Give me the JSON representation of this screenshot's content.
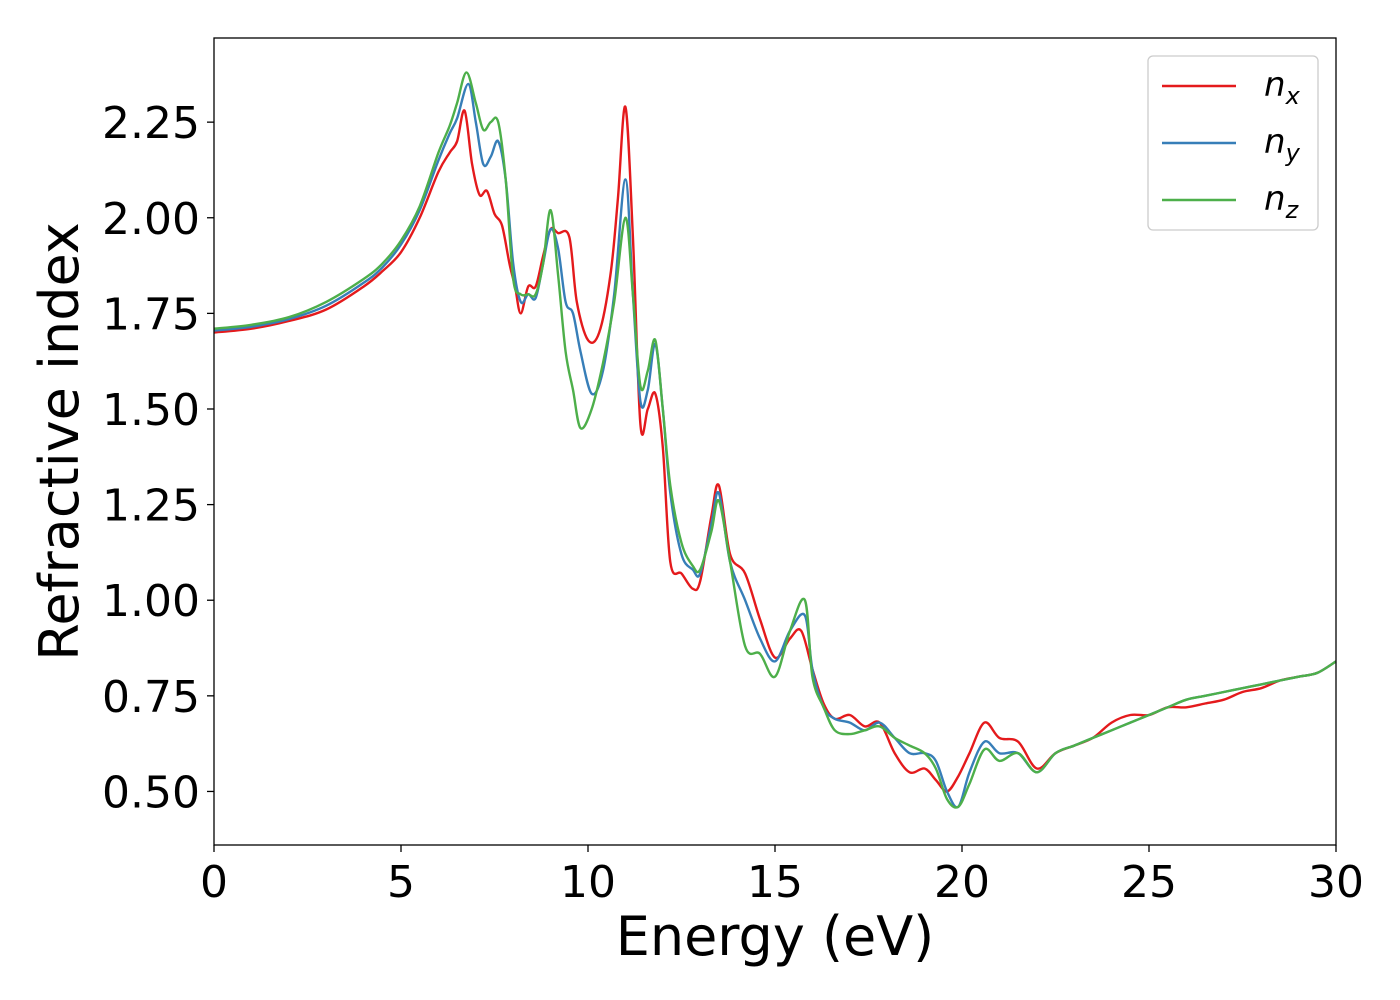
{
  "chart_data": {
    "type": "line",
    "xlabel": "Energy (eV)",
    "ylabel": "Refractive index",
    "xlim": [
      0,
      30
    ],
    "ylim": [
      0.36,
      2.47
    ],
    "xticks": [
      "0",
      "5",
      "10",
      "15",
      "20",
      "25",
      "30"
    ],
    "yticks": [
      "0.50",
      "0.75",
      "1.00",
      "1.25",
      "1.50",
      "1.75",
      "2.00",
      "2.25"
    ],
    "grid": false,
    "legend": "top-right",
    "series": [
      {
        "name": "n",
        "subscript": "x",
        "color": "#e41a1c",
        "x": [
          0,
          1,
          2,
          3,
          4,
          4.5,
          5,
          5.5,
          6,
          6.3,
          6.5,
          6.7,
          6.9,
          7.1,
          7.3,
          7.5,
          7.7,
          7.9,
          8.05,
          8.2,
          8.4,
          8.6,
          8.8,
          9.0,
          9.2,
          9.5,
          9.7,
          10.0,
          10.3,
          10.6,
          10.8,
          11.0,
          11.2,
          11.4,
          11.6,
          11.8,
          12.0,
          12.2,
          12.5,
          12.8,
          13.0,
          13.3,
          13.5,
          13.8,
          14.2,
          14.6,
          15.0,
          15.4,
          15.7,
          16.0,
          16.3,
          16.6,
          17.0,
          17.4,
          17.8,
          18.2,
          18.6,
          19.0,
          19.3,
          19.6,
          19.9,
          20.2,
          20.6,
          21.0,
          21.5,
          22.0,
          22.5,
          23.0,
          23.5,
          24.0,
          24.5,
          25.0,
          25.5,
          26.0,
          26.5,
          27.0,
          27.5,
          28.0,
          28.5,
          29.0,
          29.5,
          30.0
        ],
        "y": [
          1.7,
          1.71,
          1.73,
          1.76,
          1.82,
          1.86,
          1.91,
          2.0,
          2.12,
          2.17,
          2.2,
          2.28,
          2.14,
          2.06,
          2.07,
          2.01,
          1.98,
          1.88,
          1.82,
          1.75,
          1.82,
          1.82,
          1.9,
          1.97,
          1.96,
          1.95,
          1.78,
          1.68,
          1.7,
          1.85,
          2.05,
          2.29,
          1.95,
          1.46,
          1.5,
          1.54,
          1.4,
          1.1,
          1.07,
          1.03,
          1.05,
          1.22,
          1.3,
          1.12,
          1.07,
          0.95,
          0.85,
          0.9,
          0.92,
          0.82,
          0.73,
          0.69,
          0.7,
          0.67,
          0.68,
          0.6,
          0.55,
          0.56,
          0.53,
          0.5,
          0.54,
          0.6,
          0.68,
          0.64,
          0.63,
          0.56,
          0.6,
          0.62,
          0.64,
          0.68,
          0.7,
          0.7,
          0.72,
          0.72,
          0.73,
          0.74,
          0.76,
          0.77,
          0.79,
          0.8,
          0.81,
          0.84
        ]
      },
      {
        "name": "n",
        "subscript": "y",
        "color": "#377eb8",
        "x": [
          0,
          1,
          2,
          3,
          4,
          4.5,
          5,
          5.5,
          6,
          6.3,
          6.5,
          6.8,
          7.0,
          7.2,
          7.4,
          7.6,
          7.8,
          8.0,
          8.2,
          8.4,
          8.6,
          8.8,
          9.0,
          9.2,
          9.4,
          9.6,
          9.8,
          10.1,
          10.4,
          10.7,
          11.0,
          11.2,
          11.4,
          11.6,
          11.8,
          12.0,
          12.2,
          12.5,
          12.8,
          13.0,
          13.3,
          13.5,
          13.8,
          14.2,
          14.6,
          15.0,
          15.4,
          15.8,
          16.0,
          16.3,
          16.6,
          17.0,
          17.4,
          17.8,
          18.2,
          18.6,
          19.0,
          19.3,
          19.6,
          19.9,
          20.2,
          20.6,
          21.0,
          21.5,
          22.0,
          22.5,
          23.0,
          23.5,
          24.0,
          24.5,
          25.0,
          25.5,
          26.0,
          26.5,
          27.0,
          27.5,
          28.0,
          28.5,
          29.0,
          29.5,
          30.0
        ],
        "y": [
          1.705,
          1.715,
          1.735,
          1.77,
          1.83,
          1.87,
          1.93,
          2.02,
          2.15,
          2.22,
          2.26,
          2.35,
          2.25,
          2.14,
          2.16,
          2.2,
          2.1,
          1.88,
          1.78,
          1.8,
          1.79,
          1.88,
          1.97,
          1.92,
          1.78,
          1.75,
          1.65,
          1.54,
          1.6,
          1.8,
          2.1,
          1.8,
          1.52,
          1.55,
          1.67,
          1.5,
          1.28,
          1.12,
          1.08,
          1.07,
          1.2,
          1.28,
          1.1,
          1.0,
          0.9,
          0.84,
          0.92,
          0.96,
          0.82,
          0.72,
          0.69,
          0.68,
          0.66,
          0.68,
          0.64,
          0.6,
          0.6,
          0.58,
          0.5,
          0.46,
          0.55,
          0.63,
          0.6,
          0.6,
          0.55,
          0.6,
          0.62,
          0.64,
          0.66,
          0.68,
          0.7,
          0.72,
          0.74,
          0.75,
          0.76,
          0.77,
          0.78,
          0.79,
          0.8,
          0.81,
          0.84
        ]
      },
      {
        "name": "n",
        "subscript": "z",
        "color": "#4daf4a",
        "x": [
          0,
          1,
          2,
          3,
          4,
          4.5,
          5,
          5.5,
          6,
          6.3,
          6.5,
          6.75,
          7.0,
          7.2,
          7.4,
          7.6,
          7.8,
          8.0,
          8.2,
          8.4,
          8.6,
          8.8,
          9.0,
          9.2,
          9.4,
          9.6,
          9.8,
          10.1,
          10.4,
          10.7,
          11.0,
          11.2,
          11.4,
          11.6,
          11.8,
          12.0,
          12.2,
          12.5,
          12.8,
          13.0,
          13.3,
          13.5,
          13.8,
          14.2,
          14.6,
          15.0,
          15.4,
          15.8,
          16.0,
          16.3,
          16.6,
          17.0,
          17.4,
          17.8,
          18.2,
          18.6,
          19.0,
          19.3,
          19.6,
          19.9,
          20.2,
          20.6,
          21.0,
          21.5,
          22.0,
          22.5,
          23.0,
          23.5,
          24.0,
          24.5,
          25.0,
          25.5,
          26.0,
          26.5,
          27.0,
          27.5,
          28.0,
          28.5,
          29.0,
          29.5,
          30.0
        ],
        "y": [
          1.71,
          1.72,
          1.74,
          1.78,
          1.84,
          1.88,
          1.94,
          2.03,
          2.17,
          2.24,
          2.3,
          2.38,
          2.3,
          2.23,
          2.25,
          2.25,
          2.1,
          1.84,
          1.8,
          1.8,
          1.8,
          1.88,
          2.02,
          1.85,
          1.65,
          1.55,
          1.45,
          1.5,
          1.62,
          1.78,
          2.0,
          1.8,
          1.56,
          1.6,
          1.68,
          1.5,
          1.3,
          1.15,
          1.09,
          1.08,
          1.18,
          1.26,
          1.1,
          0.88,
          0.86,
          0.8,
          0.92,
          1.0,
          0.8,
          0.72,
          0.66,
          0.65,
          0.66,
          0.67,
          0.64,
          0.62,
          0.6,
          0.56,
          0.48,
          0.46,
          0.52,
          0.61,
          0.58,
          0.6,
          0.55,
          0.6,
          0.62,
          0.64,
          0.66,
          0.68,
          0.7,
          0.72,
          0.74,
          0.75,
          0.76,
          0.77,
          0.78,
          0.79,
          0.8,
          0.81,
          0.84
        ]
      }
    ]
  }
}
